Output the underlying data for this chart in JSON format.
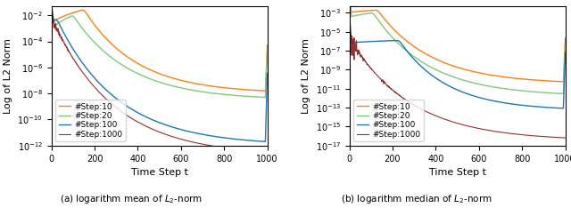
{
  "title_left": "(a) logarithm mean of $L_2$-norm",
  "title_right": "(b) logarithm median of $L_2$-norm",
  "xlabel": "Time Step t",
  "ylabel": "Log of L2 Norm",
  "legend_labels": [
    "#Step:10",
    "#Step:20",
    "#Step:100",
    "#Step:1000"
  ],
  "colors": [
    "#ff7f0e",
    "#7fc97f",
    "#1f77b4",
    "#8b1a1a"
  ],
  "xlim": [
    0,
    1000
  ],
  "left_ylim": [
    1e-12,
    0.05
  ],
  "right_ylim": [
    1e-17,
    0.005
  ],
  "figsize": [
    6.4,
    2.34
  ],
  "dpi": 100
}
